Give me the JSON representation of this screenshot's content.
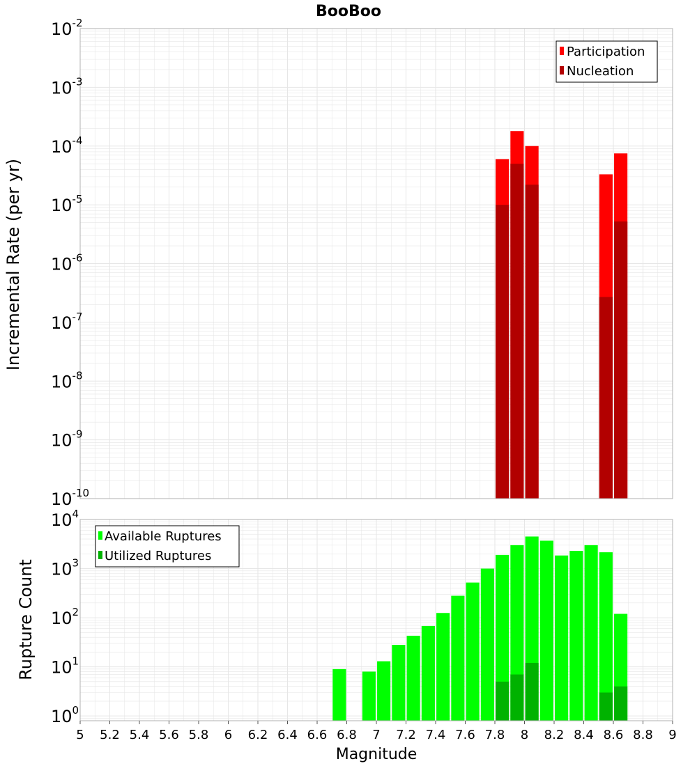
{
  "colors": {
    "participation": "#ff0000",
    "nucleation": "#b20000",
    "available": "#00ff00",
    "utilized": "#00b200",
    "grid": "#e6e6e6",
    "frame": "#b0b0b0"
  },
  "chart_data": [
    {
      "type": "bar",
      "title": "BooBoo",
      "xlabel": "",
      "ylabel": "Incremental Rate (per yr)",
      "yscale": "log",
      "ylim": [
        1e-10,
        0.01
      ],
      "xlim": [
        5,
        9
      ],
      "bar_width": 0.09,
      "grid": true,
      "legend_position": "top-right",
      "legend": [
        "Participation",
        "Nucleation"
      ],
      "series": [
        {
          "name": "Participation",
          "x": [
            7.85,
            7.95,
            8.05,
            8.55,
            8.65
          ],
          "values": [
            6e-05,
            0.00018,
            0.0001,
            3.3e-05,
            7.5e-05
          ]
        },
        {
          "name": "Nucleation",
          "x": [
            7.85,
            7.95,
            8.05,
            8.55,
            8.65
          ],
          "values": [
            1e-05,
            5e-05,
            2.2e-05,
            2.7e-07,
            5.2e-06
          ]
        }
      ]
    },
    {
      "type": "bar",
      "title": "",
      "xlabel": "Magnitude",
      "ylabel": "Rupture Count",
      "yscale": "log",
      "ylim": [
        0.8,
        10000
      ],
      "xlim": [
        5,
        9
      ],
      "bar_width": 0.09,
      "grid": true,
      "legend_position": "top-left",
      "legend": [
        "Available Ruptures",
        "Utilized Ruptures"
      ],
      "xticks": [
        "5",
        "5.2",
        "5.4",
        "5.6",
        "5.8",
        "6",
        "6.2",
        "6.4",
        "6.6",
        "6.8",
        "7",
        "7.2",
        "7.4",
        "7.6",
        "7.8",
        "8",
        "8.2",
        "8.4",
        "8.6",
        "8.8",
        "9"
      ],
      "series": [
        {
          "name": "Available Ruptures",
          "x": [
            6.75,
            6.95,
            7.05,
            7.15,
            7.25,
            7.35,
            7.45,
            7.55,
            7.65,
            7.75,
            7.85,
            7.95,
            8.05,
            8.15,
            8.25,
            8.35,
            8.45,
            8.55,
            8.65
          ],
          "values": [
            9,
            8,
            13,
            28,
            43,
            68,
            125,
            280,
            520,
            1000,
            1900,
            3000,
            4500,
            3700,
            1850,
            2300,
            3000,
            2150,
            120
          ]
        },
        {
          "name": "Utilized Ruptures",
          "x": [
            7.85,
            7.95,
            8.05,
            8.55,
            8.65
          ],
          "values": [
            5,
            7,
            12,
            3,
            4
          ]
        }
      ]
    }
  ],
  "top_yticks": [
    {
      "base": "10",
      "exp": "-2",
      "v": 0.01
    },
    {
      "base": "10",
      "exp": "-3",
      "v": 0.001
    },
    {
      "base": "10",
      "exp": "-4",
      "v": 0.0001
    },
    {
      "base": "10",
      "exp": "-5",
      "v": 1e-05
    },
    {
      "base": "10",
      "exp": "-6",
      "v": 1e-06
    },
    {
      "base": "10",
      "exp": "-7",
      "v": 1e-07
    },
    {
      "base": "10",
      "exp": "-8",
      "v": 1e-08
    },
    {
      "base": "10",
      "exp": "-9",
      "v": 1e-09
    },
    {
      "base": "10",
      "exp": "-10",
      "v": 1e-10
    }
  ],
  "bottom_yticks": [
    {
      "base": "10",
      "exp": "4",
      "v": 10000
    },
    {
      "base": "10",
      "exp": "3",
      "v": 1000
    },
    {
      "base": "10",
      "exp": "2",
      "v": 100
    },
    {
      "base": "10",
      "exp": "1",
      "v": 10
    },
    {
      "base": "10",
      "exp": "0",
      "v": 1
    }
  ]
}
